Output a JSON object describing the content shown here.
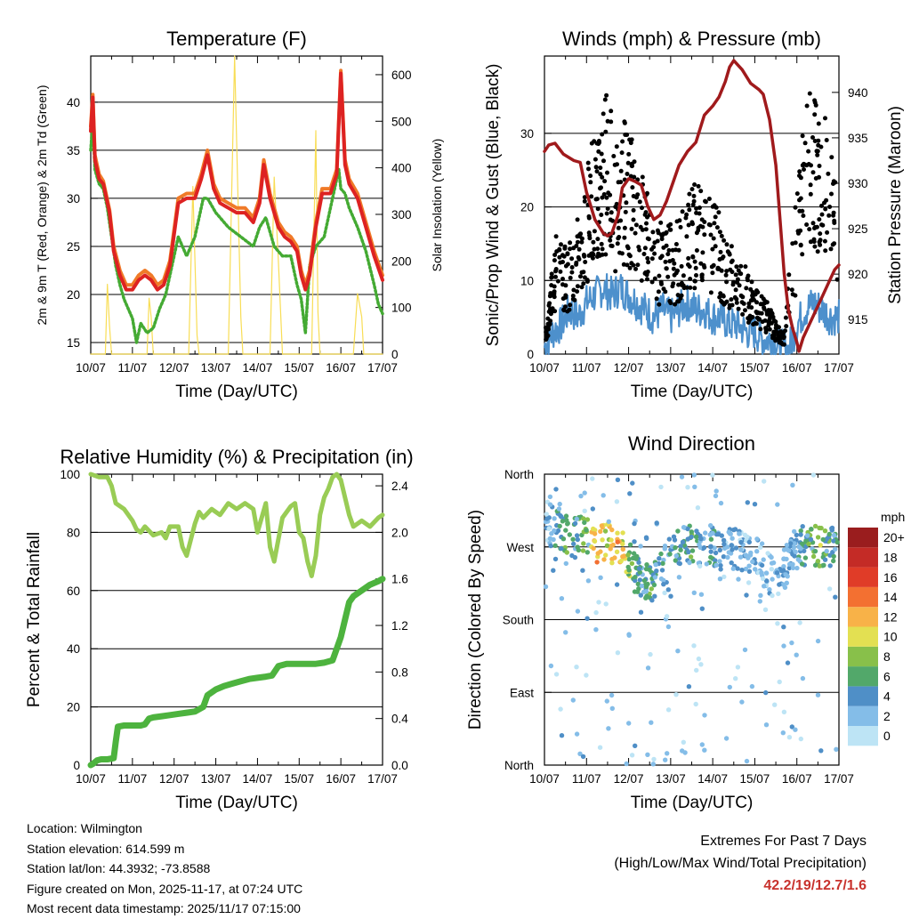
{
  "x_ticks": [
    "10/07",
    "11/07",
    "12/07",
    "13/07",
    "14/07",
    "15/07",
    "16/07",
    "17/07"
  ],
  "xlabel": "Time (Day/UTC)",
  "colors": {
    "t2m": "#dd2222",
    "t9m": "#f07a28",
    "td": "#44aa33",
    "solar": "#f8dd55",
    "wind": "#000000",
    "gust": "#4d90cc",
    "pressure": "#a01a1c",
    "rh": "#99cc55",
    "precip": "#4db33e",
    "extremes": "#c8322d"
  },
  "chart_data": [
    {
      "type": "line",
      "title": "Temperature (F)",
      "ylabel_left": "2m & 9m T (Red, Orange) & 2m Td (Green)",
      "ylabel_right": "Solar Insolation (Yellow)",
      "yticks_left": [
        15,
        20,
        25,
        30,
        35,
        40
      ],
      "yticks_right": [
        0,
        100,
        200,
        300,
        400,
        500,
        600
      ],
      "ylim_left": [
        13.8,
        44.8
      ],
      "ylim_right": [
        0,
        640
      ],
      "x_days": [
        0,
        7
      ],
      "series": [
        {
          "name": "2m T",
          "x": [
            0,
            0.05,
            0.1,
            0.2,
            0.3,
            0.45,
            0.55,
            0.7,
            0.85,
            1.0,
            1.15,
            1.3,
            1.45,
            1.6,
            1.75,
            1.9,
            2.1,
            2.3,
            2.5,
            2.65,
            2.8,
            2.95,
            3.1,
            3.3,
            3.5,
            3.7,
            3.9,
            4.05,
            4.15,
            4.3,
            4.5,
            4.65,
            4.8,
            4.95,
            5.05,
            5.15,
            5.25,
            5.4,
            5.55,
            5.75,
            5.9,
            6.0,
            6.1,
            6.2,
            6.4,
            6.6,
            6.8,
            7.0
          ],
          "values": [
            37,
            40.5,
            34,
            32,
            31.5,
            28.5,
            24.5,
            22,
            20.5,
            20.5,
            21.5,
            22,
            21.5,
            20.5,
            21,
            23,
            29.5,
            30,
            30,
            32,
            34.5,
            31,
            29.5,
            29,
            28.5,
            28.5,
            27.5,
            29.5,
            33.5,
            30,
            27,
            26,
            25.5,
            24.5,
            22,
            20.5,
            22,
            27,
            30.5,
            30.5,
            32.5,
            43,
            33.5,
            31.5,
            30,
            27,
            24,
            21.5
          ]
        },
        {
          "name": "9m T",
          "x": [
            0,
            0.05,
            0.1,
            0.2,
            0.3,
            0.45,
            0.55,
            0.7,
            0.85,
            1.0,
            1.15,
            1.3,
            1.45,
            1.6,
            1.75,
            1.9,
            2.1,
            2.3,
            2.5,
            2.65,
            2.8,
            2.95,
            3.1,
            3.3,
            3.5,
            3.7,
            3.9,
            4.05,
            4.15,
            4.3,
            4.5,
            4.65,
            4.8,
            4.95,
            5.05,
            5.15,
            5.25,
            5.4,
            5.55,
            5.75,
            5.9,
            6.0,
            6.1,
            6.2,
            6.4,
            6.6,
            6.8,
            7.0
          ],
          "values": [
            37.5,
            40.8,
            34.5,
            32.5,
            31.8,
            28.8,
            25,
            22.5,
            21,
            21,
            22,
            22.5,
            22,
            21,
            21.5,
            23.5,
            30,
            30.5,
            30.5,
            32.5,
            35,
            31.5,
            30,
            29.5,
            29,
            29,
            28,
            30,
            34,
            30.5,
            27.5,
            26.5,
            26,
            25,
            22.5,
            21,
            22.5,
            27.5,
            31,
            31,
            33,
            43.3,
            34,
            32,
            30.5,
            27.5,
            24.5,
            22
          ]
        },
        {
          "name": "2m Td",
          "x": [
            0,
            0.05,
            0.1,
            0.2,
            0.3,
            0.4,
            0.5,
            0.6,
            0.7,
            0.8,
            0.9,
            1.0,
            1.1,
            1.2,
            1.35,
            1.5,
            1.65,
            1.8,
            1.9,
            2.0,
            2.1,
            2.3,
            2.5,
            2.7,
            2.8,
            3.0,
            3.3,
            3.6,
            3.9,
            4.05,
            4.2,
            4.4,
            4.6,
            4.8,
            4.95,
            5.05,
            5.15,
            5.25,
            5.4,
            5.6,
            5.8,
            5.95,
            6.0,
            6.1,
            6.2,
            6.4,
            6.6,
            6.8,
            6.9,
            7.0
          ],
          "values": [
            35,
            38,
            33,
            31.5,
            31,
            29,
            26,
            23,
            21,
            19.5,
            18.5,
            17.5,
            15,
            17,
            16,
            16.5,
            18.5,
            20,
            22,
            24,
            26,
            24,
            26,
            30,
            30,
            28.5,
            27,
            26,
            25,
            27,
            28,
            25,
            24,
            24,
            21,
            19.5,
            16,
            23,
            25,
            26,
            30,
            33,
            31,
            30.5,
            29,
            27,
            24.5,
            21,
            19,
            18
          ]
        },
        {
          "name": "Solar Insolation",
          "axis": "right",
          "x": [
            0,
            0.35,
            0.4,
            0.45,
            0.5,
            1.0,
            1.35,
            1.4,
            1.45,
            1.5,
            2.0,
            2.35,
            2.45,
            2.55,
            2.6,
            3.0,
            3.3,
            3.45,
            3.6,
            3.65,
            4.0,
            4.3,
            4.4,
            4.5,
            4.6,
            5.0,
            5.3,
            5.4,
            5.45,
            5.5,
            6.0,
            6.3,
            6.4,
            6.5,
            6.55,
            7.0
          ],
          "values": [
            0,
            0,
            150,
            60,
            0,
            0,
            0,
            120,
            80,
            0,
            0,
            0,
            360,
            40,
            0,
            0,
            0,
            640,
            80,
            0,
            0,
            0,
            380,
            200,
            0,
            0,
            0,
            480,
            90,
            0,
            0,
            0,
            130,
            80,
            0,
            0
          ]
        }
      ]
    },
    {
      "type": "scatter",
      "title": "Winds (mph) & Pressure (mb)",
      "ylabel_left": "Sonic/Prop Wind & Gust (Blue, Black)",
      "ylabel_right": "Station Pressure (Maroon)",
      "yticks_left": [
        0,
        10,
        20,
        30
      ],
      "yticks_right": [
        915,
        920,
        925,
        930,
        935,
        940
      ],
      "ylim_left": [
        0,
        40.5
      ],
      "ylim_right": [
        911.2,
        944
      ],
      "x_days": [
        0,
        7
      ],
      "series": [
        {
          "name": "Gust (black dots)",
          "x": [
            0.1,
            0.3,
            0.5,
            0.7,
            0.9,
            1.1,
            1.3,
            1.5,
            1.7,
            1.9,
            2.1,
            2.3,
            2.5,
            2.7,
            2.9,
            3.1,
            3.3,
            3.5,
            3.7,
            3.9,
            4.1,
            4.3,
            4.5,
            4.7,
            4.9,
            5.1,
            5.3,
            5.5,
            5.7,
            5.9,
            6.1,
            6.3,
            6.5,
            6.7,
            6.9
          ],
          "values": [
            5,
            12,
            10,
            12,
            14,
            20,
            22,
            25,
            20,
            22,
            20,
            17,
            15,
            12,
            13,
            12,
            14,
            16,
            16,
            15,
            14,
            11,
            10,
            9,
            7,
            6,
            5,
            3,
            2,
            12,
            20,
            25,
            24,
            22,
            18
          ]
        },
        {
          "name": "Wind (blue)",
          "x": [
            0,
            0.2,
            0.4,
            0.6,
            0.8,
            1.0,
            1.2,
            1.4,
            1.6,
            1.8,
            2.0,
            2.2,
            2.4,
            2.6,
            2.8,
            3.0,
            3.2,
            3.4,
            3.6,
            3.8,
            4.0,
            4.2,
            4.4,
            4.6,
            4.8,
            5.0,
            5.2,
            5.4,
            5.6,
            5.8,
            6.0,
            6.2,
            6.4,
            6.6,
            6.8,
            7.0
          ],
          "values": [
            1,
            3,
            4,
            6,
            5,
            7,
            8,
            9,
            8,
            9,
            8,
            7,
            6,
            5,
            6,
            5,
            6,
            7,
            6,
            6,
            5,
            5,
            4,
            4,
            3,
            3,
            2,
            2,
            1,
            0.5,
            4,
            6,
            7,
            6,
            5,
            5
          ]
        },
        {
          "name": "Station Pressure",
          "axis": "right",
          "x": [
            0,
            0.1,
            0.25,
            0.45,
            0.7,
            0.85,
            1.0,
            1.2,
            1.4,
            1.5,
            1.6,
            1.75,
            1.85,
            2.0,
            2.15,
            2.3,
            2.45,
            2.6,
            2.75,
            2.9,
            3.05,
            3.2,
            3.4,
            3.6,
            3.8,
            4.0,
            4.15,
            4.3,
            4.4,
            4.5,
            4.7,
            4.9,
            5.1,
            5.2,
            5.35,
            5.5,
            5.6,
            5.7,
            5.8,
            5.9,
            6.0,
            6.05,
            6.15,
            6.3,
            6.45,
            6.6,
            6.8,
            6.9,
            7.0
          ],
          "values": [
            933.5,
            934.2,
            934.4,
            933.2,
            932.5,
            932.3,
            929,
            926,
            924.5,
            924.2,
            924.5,
            926.5,
            929.5,
            930.5,
            930.2,
            929.8,
            927.5,
            926,
            926.5,
            928,
            930,
            932,
            933.5,
            934.5,
            937.5,
            938.5,
            939.5,
            941.2,
            942.8,
            943.5,
            942.5,
            941,
            940.3,
            939.8,
            937,
            932,
            926,
            920,
            916,
            914,
            912.5,
            911.5,
            913,
            914.5,
            916,
            917.5,
            919.5,
            920.5,
            921
          ]
        }
      ]
    },
    {
      "type": "line",
      "title": "Relative Humidity (%) & Precipitation (in)",
      "ylabel_left": "Percent & Total Rainfall",
      "yticks_left": [
        0,
        20,
        40,
        60,
        80,
        100
      ],
      "yticks_right": [
        "0.0",
        "0.4",
        "0.8",
        "1.2",
        "1.6",
        "2.0",
        "2.4"
      ],
      "ylim_left": [
        0,
        100
      ],
      "ylim_right": [
        0,
        2.5
      ],
      "x_days": [
        0,
        7
      ],
      "series": [
        {
          "name": "Relative Humidity",
          "x": [
            0,
            0.2,
            0.4,
            0.5,
            0.6,
            0.8,
            1.0,
            1.1,
            1.2,
            1.3,
            1.5,
            1.7,
            1.8,
            1.9,
            2.1,
            2.2,
            2.3,
            2.5,
            2.6,
            2.7,
            2.9,
            3.1,
            3.3,
            3.5,
            3.7,
            3.9,
            4.0,
            4.2,
            4.3,
            4.4,
            4.6,
            4.8,
            4.9,
            5.0,
            5.1,
            5.2,
            5.3,
            5.4,
            5.5,
            5.6,
            5.7,
            5.8,
            5.9,
            6.0,
            6.1,
            6.2,
            6.3,
            6.5,
            6.7,
            6.9,
            7.0
          ],
          "values": [
            100,
            99,
            99,
            96,
            90,
            88,
            84,
            81,
            80,
            82,
            79,
            80,
            78,
            82,
            82,
            75,
            72,
            83,
            87,
            85,
            88,
            86,
            90,
            88,
            90,
            88,
            80,
            90,
            75,
            70,
            85,
            89,
            90,
            80,
            78,
            70,
            65,
            72,
            86,
            92,
            95,
            99,
            100,
            98,
            92,
            86,
            82,
            84,
            82,
            85,
            86
          ]
        },
        {
          "name": "Total Precipitation",
          "axis": "right",
          "x": [
            0,
            0.05,
            0.15,
            0.25,
            0.4,
            0.55,
            0.6,
            0.65,
            0.8,
            1.0,
            1.2,
            1.3,
            1.4,
            1.5,
            1.7,
            1.9,
            2.1,
            2.3,
            2.5,
            2.7,
            2.8,
            3.0,
            3.2,
            3.4,
            3.6,
            3.8,
            4.0,
            4.2,
            4.35,
            4.5,
            4.7,
            4.9,
            5.0,
            5.2,
            5.4,
            5.6,
            5.8,
            5.9,
            6.0,
            6.1,
            6.2,
            6.3,
            6.5,
            6.7,
            6.9,
            7.0
          ],
          "values": [
            0,
            0.01,
            0.04,
            0.05,
            0.05,
            0.06,
            0.2,
            0.33,
            0.34,
            0.34,
            0.34,
            0.35,
            0.4,
            0.41,
            0.42,
            0.43,
            0.44,
            0.45,
            0.46,
            0.5,
            0.6,
            0.65,
            0.68,
            0.7,
            0.72,
            0.74,
            0.75,
            0.76,
            0.77,
            0.85,
            0.87,
            0.87,
            0.87,
            0.87,
            0.87,
            0.88,
            0.9,
            1.0,
            1.1,
            1.25,
            1.4,
            1.45,
            1.5,
            1.55,
            1.58,
            1.6
          ]
        }
      ]
    },
    {
      "type": "scatter",
      "title": "Wind Direction",
      "ylabel": "Direction (Colored By Speed)",
      "yticks_labels": [
        "North",
        "East",
        "South",
        "West",
        "North"
      ],
      "yticks_deg": [
        0,
        90,
        180,
        270,
        360
      ],
      "ylim": [
        0,
        360
      ],
      "x_days": [
        0,
        7
      ],
      "legend_title": "mph",
      "legend_labels": [
        "0",
        "2",
        "4",
        "6",
        "8",
        "10",
        "12",
        "14",
        "16",
        "18",
        "20+"
      ],
      "legend_colors": [
        "#bde4f5",
        "#84bde8",
        "#4f8fc7",
        "#52a86a",
        "#88c04a",
        "#e3e052",
        "#f8b248",
        "#f37031",
        "#e03c28",
        "#c42b26",
        "#9a1d1e"
      ],
      "series": [
        {
          "name": "Direction (westerly band)",
          "x": [
            0.1,
            0.3,
            0.5,
            0.7,
            0.9,
            1.1,
            1.3,
            1.5,
            1.7,
            1.9,
            2.1,
            2.3,
            2.5,
            2.7,
            2.9,
            3.1,
            3.3,
            3.5,
            3.7,
            3.9,
            4.1,
            4.3,
            4.5,
            4.7,
            4.9,
            5.1,
            5.3,
            5.5,
            6.1,
            6.3,
            6.5,
            6.7,
            6.9
          ],
          "values": [
            300,
            290,
            285,
            280,
            285,
            275,
            270,
            275,
            265,
            270,
            240,
            230,
            220,
            230,
            250,
            265,
            270,
            275,
            270,
            275,
            265,
            270,
            268,
            265,
            260,
            255,
            240,
            230,
            270,
            275,
            270,
            272,
            268
          ],
          "speed": [
            2,
            4,
            6,
            4,
            6,
            10,
            12,
            10,
            12,
            10,
            6,
            4,
            6,
            4,
            4,
            4,
            4,
            6,
            4,
            4,
            4,
            2,
            4,
            2,
            2,
            2,
            2,
            2,
            4,
            6,
            8,
            6,
            4
          ]
        }
      ]
    }
  ],
  "info": {
    "location": "Location: Wilmington",
    "elevation": "Station elevation: 614.599 m",
    "latlon": "Station lat/lon: 44.3932; -73.8588",
    "created": "Figure created on Mon, 2025-11-17, at 07:24 UTC",
    "recent": "Most recent data timestamp: 2025/11/17 07:15:00"
  },
  "extremes": {
    "line1": "Extremes For Past 7 Days",
    "line2": "(High/Low/Max Wind/Total Precipitation)",
    "values": "42.2/19/12.7/1.6"
  }
}
